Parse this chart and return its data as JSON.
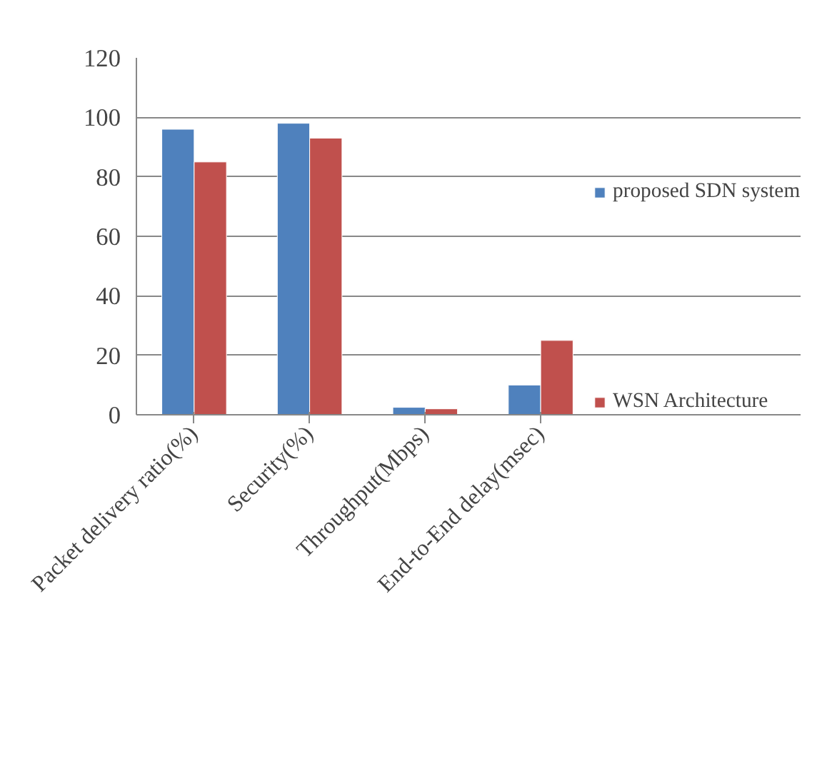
{
  "chart_data": {
    "type": "bar",
    "categories": [
      "Packet delivery ratio(%)",
      "Security(%)",
      "Throughput(Mbps)",
      "End-to-End delay(msec)"
    ],
    "series": [
      {
        "name": "proposed SDN system",
        "color": "#4f81bd",
        "values": [
          96,
          98,
          2.5,
          10
        ]
      },
      {
        "name": "WSN Architecture",
        "color": "#c0504d",
        "values": [
          85,
          93,
          2,
          25
        ]
      }
    ],
    "ylim": [
      0,
      120
    ],
    "yticks": [
      0,
      20,
      40,
      60,
      80,
      100,
      120
    ],
    "grid": "y",
    "legend": "right"
  }
}
